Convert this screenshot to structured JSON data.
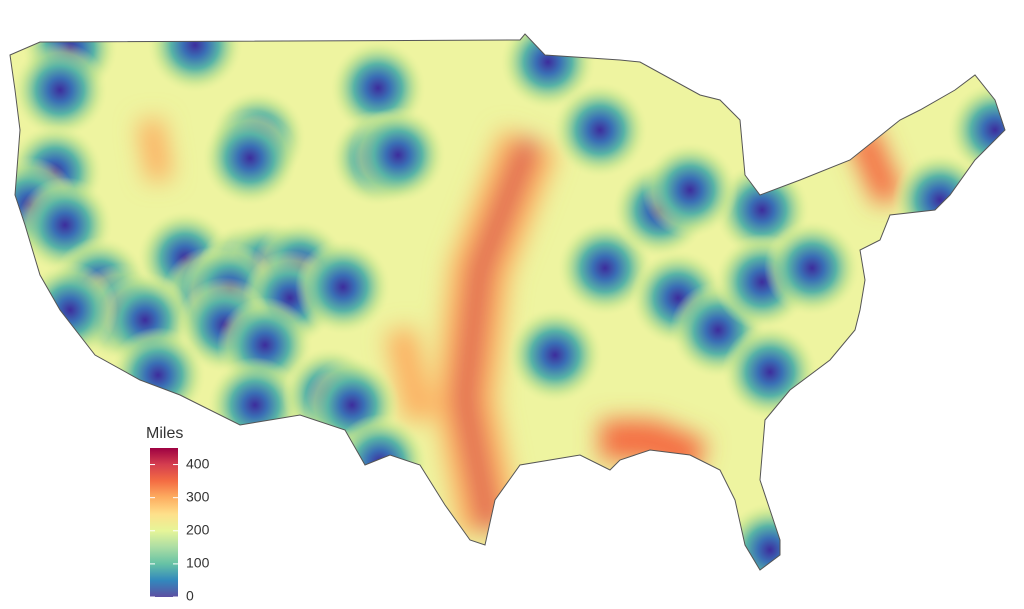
{
  "legend": {
    "title": "Miles",
    "lim": [
      0,
      450
    ],
    "ticks": [
      0,
      100,
      200,
      300,
      400
    ],
    "colors": [
      "#5e4fa2",
      "#3288bd",
      "#66c2a5",
      "#abdda4",
      "#e6f598",
      "#fee08b",
      "#fdae61",
      "#f46d43",
      "#d53e4f",
      "#9e0142"
    ]
  }
}
